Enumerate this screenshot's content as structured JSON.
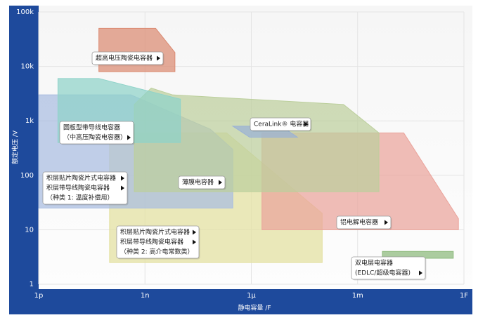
{
  "chart_data": {
    "type": "region",
    "x_label": "静电容量 /F",
    "y_label": "额定电压 /V",
    "log_x": true,
    "log_y": true,
    "grid": true,
    "xlim": [
      1e-12,
      1
    ],
    "ylim": [
      1,
      100000
    ],
    "xticks": [
      {
        "value": 1e-12,
        "label": "1p"
      },
      {
        "value": 1e-09,
        "label": "1n"
      },
      {
        "value": 1e-06,
        "label": "1μ"
      },
      {
        "value": 0.001,
        "label": "1m"
      },
      {
        "value": 1,
        "label": "1F"
      }
    ],
    "yticks": [
      1,
      10,
      100,
      {
        "value": 1000,
        "label": "1k"
      },
      {
        "value": 10000,
        "label": "10k"
      },
      {
        "value": 100000,
        "label": "100k"
      }
    ],
    "series": [
      {
        "labels": [
          "积层贴片陶瓷片式电容器",
          "积层带导线陶瓷电容器",
          "（种类 2: 高介电常数类）"
        ],
        "color": "#e3e0a0",
        "x": [
          1e-10,
          2e-07,
          0.0001,
          0.0001,
          1e-10
        ],
        "y": [
          600,
          600,
          20,
          2.5,
          2.5
        ]
      },
      {
        "labels": [
          "积层贴片陶瓷片式电容器",
          "积层带导线陶瓷电容器",
          "（种类 1: 温度补偿用）"
        ],
        "color": "#a9bde0",
        "x": [
          1e-12,
          4e-10,
          7e-08,
          3e-07,
          3e-07,
          1e-12
        ],
        "y": [
          3000,
          3000,
          700,
          300,
          25,
          25
        ]
      },
      {
        "labels": [
          "铝电解电容器"
        ],
        "color": "#eaa39b",
        "x": [
          2e-06,
          0.02,
          0.7,
          0.7,
          2e-06
        ],
        "y": [
          600,
          600,
          16,
          10,
          10
        ]
      },
      {
        "labels": [
          "薄膜电容器"
        ],
        "color": "#bccf9c",
        "x": [
          5e-10,
          1.5e-09,
          6e-09,
          0.0004,
          0.004,
          0.004,
          5e-10
        ],
        "y": [
          2000,
          4000,
          3000,
          2000,
          600,
          50,
          50
        ]
      },
      {
        "labels": [
          "圆板型带导线电容器",
          "（中高压陶瓷电容器）"
        ],
        "color": "#8fd3c9",
        "x": [
          3.5e-12,
          5e-11,
          1e-08,
          1e-08,
          3.5e-12
        ],
        "y": [
          6000,
          6000,
          2500,
          400,
          400
        ]
      },
      {
        "labels": [
          "超高电压陶瓷电容器"
        ],
        "color": "#db8a72",
        "x": [
          5e-11,
          2e-09,
          7e-09,
          7e-09,
          5e-11
        ],
        "y": [
          50000,
          50000,
          18000,
          8000,
          8000
        ]
      },
      {
        "labels": [
          "CeraLink® 电容器"
        ],
        "color": "#9ab2d6",
        "x": [
          3e-07,
          7e-06,
          2e-05,
          9e-07
        ],
        "y": [
          800,
          800,
          500,
          500
        ]
      },
      {
        "labels": [
          "双电层电容器",
          "(EDLC/超级电容器)"
        ],
        "color": "#8cba7c",
        "x": [
          0.005,
          0.5,
          0.5,
          0.005
        ],
        "y": [
          4,
          4,
          3,
          3
        ]
      }
    ]
  }
}
